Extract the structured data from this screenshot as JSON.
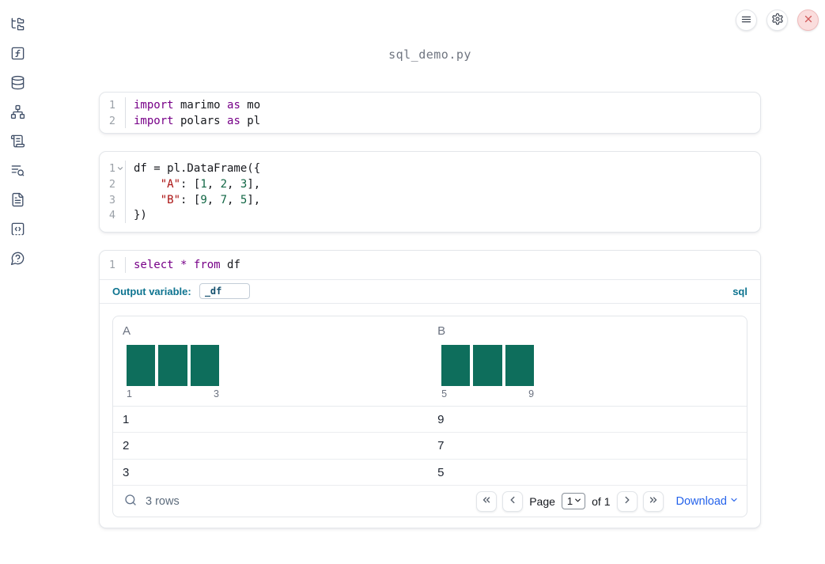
{
  "app": {
    "filename": "sql_demo.py"
  },
  "colors": {
    "histogram_bar": "#0e6e5c",
    "accent_teal": "#0e7490",
    "link_blue": "#2563eb",
    "keyword": "#770088",
    "string": "#aa1111",
    "number": "#116644",
    "shutdown_red": "#d15b5b"
  },
  "sidebar": {
    "items": [
      {
        "icon": "file-tree-icon"
      },
      {
        "icon": "function-square-icon"
      },
      {
        "icon": "database-icon"
      },
      {
        "icon": "network-icon"
      },
      {
        "icon": "scroll-icon"
      },
      {
        "icon": "list-search-icon"
      },
      {
        "icon": "file-text-icon"
      },
      {
        "icon": "code-square-icon"
      },
      {
        "icon": "help-chat-icon"
      }
    ]
  },
  "cells": [
    {
      "type": "python",
      "lines": [
        {
          "n": "1",
          "tokens": [
            [
              "kw",
              "import"
            ],
            [
              "pl",
              " marimo "
            ],
            [
              "kw",
              "as"
            ],
            [
              "pl",
              " mo"
            ]
          ]
        },
        {
          "n": "2",
          "tokens": [
            [
              "kw",
              "import"
            ],
            [
              "pl",
              " polars "
            ],
            [
              "kw",
              "as"
            ],
            [
              "pl",
              " pl"
            ]
          ]
        }
      ]
    },
    {
      "type": "python",
      "lines": [
        {
          "n": "1",
          "fold": true,
          "tokens": [
            [
              "pl",
              "df = pl.DataFrame({"
            ]
          ]
        },
        {
          "n": "2",
          "tokens": [
            [
              "pl",
              "    "
            ],
            [
              "str",
              "\"A\""
            ],
            [
              "pl",
              ": ["
            ],
            [
              "num",
              "1"
            ],
            [
              "pl",
              ", "
            ],
            [
              "num",
              "2"
            ],
            [
              "pl",
              ", "
            ],
            [
              "num",
              "3"
            ],
            [
              "pl",
              "],"
            ]
          ]
        },
        {
          "n": "3",
          "tokens": [
            [
              "pl",
              "    "
            ],
            [
              "str",
              "\"B\""
            ],
            [
              "pl",
              ": ["
            ],
            [
              "num",
              "9"
            ],
            [
              "pl",
              ", "
            ],
            [
              "num",
              "7"
            ],
            [
              "pl",
              ", "
            ],
            [
              "num",
              "5"
            ],
            [
              "pl",
              "],"
            ]
          ]
        },
        {
          "n": "4",
          "tokens": [
            [
              "pl",
              "})"
            ]
          ]
        }
      ]
    },
    {
      "type": "sql",
      "lines": [
        {
          "n": "1",
          "tokens": [
            [
              "kw",
              "select"
            ],
            [
              "pl",
              " "
            ],
            [
              "kw",
              "*"
            ],
            [
              "pl",
              " "
            ],
            [
              "kw",
              "from"
            ],
            [
              "pl",
              " df"
            ]
          ]
        }
      ],
      "output_variable_label": "Output variable:",
      "output_variable_value": "_df",
      "language_label": "sql"
    }
  ],
  "output_table": {
    "columns": [
      {
        "header": "A",
        "histogram": {
          "counts": [
            1,
            1,
            1
          ],
          "min_label": "1",
          "max_label": "3",
          "values": [
            1,
            2,
            3
          ]
        }
      },
      {
        "header": "B",
        "histogram": {
          "counts": [
            1,
            1,
            1
          ],
          "min_label": "5",
          "max_label": "9",
          "values": [
            9,
            7,
            5
          ]
        }
      }
    ],
    "rows": [
      [
        "1",
        "9"
      ],
      [
        "2",
        "7"
      ],
      [
        "3",
        "5"
      ]
    ],
    "row_count_label": "3 rows",
    "pagination": {
      "page_label": "Page",
      "page_value": "1",
      "of_label": "of 1"
    },
    "download_label": "Download"
  }
}
